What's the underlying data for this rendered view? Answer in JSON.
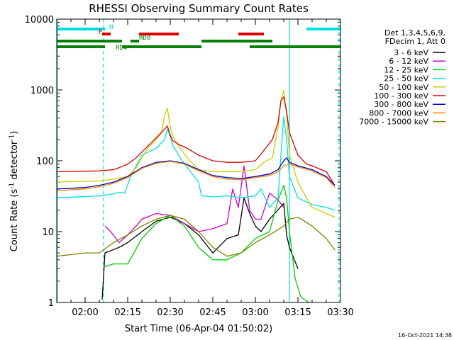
{
  "window": {
    "footer_timestamp": "16-Oct-2021 14:38"
  },
  "chart_data": {
    "type": "line",
    "title": "RHESSI Observing Summary Count Rates",
    "xlabel": "Start Time (06-Apr-04 01:50:02)",
    "ylabel_main": "Count Rate (s",
    "ylabel_sup1": "-1",
    "ylabel_mid": " detector",
    "ylabel_sup2": "-1",
    "ylabel_end": ")",
    "x_ticks": [
      "02:00",
      "02:15",
      "02:30",
      "02:45",
      "03:00",
      "03:15",
      "03:30"
    ],
    "x_tick_minutes": [
      0,
      15,
      30,
      45,
      60,
      75,
      90
    ],
    "xlim_minutes": [
      -10,
      90
    ],
    "y_scale": "log",
    "ylim": [
      1,
      10000
    ],
    "y_ticks": [
      "1",
      "10",
      "100",
      "1000",
      "10000"
    ],
    "legend": {
      "header": [
        "Det 1,3,4,5,6,9,",
        "FDecim 1, Att 0"
      ],
      "placement": "right"
    },
    "series": [
      {
        "name": "3 - 6 keV",
        "color": "#000000",
        "x": [
          0,
          5,
          6,
          7,
          12,
          15,
          20,
          25,
          30,
          35,
          40,
          45,
          50,
          54,
          56,
          58,
          60,
          62,
          65,
          70,
          71,
          72,
          75,
          80
        ],
        "y": [
          null,
          null,
          1.1,
          5,
          6,
          7,
          10,
          14,
          16,
          13,
          9,
          5,
          8,
          9,
          30,
          18,
          12,
          10,
          15,
          25,
          9,
          6,
          3,
          null
        ]
      },
      {
        "name": "6 - 12 keV",
        "color": "#cc00cc",
        "x": [
          7,
          9,
          12,
          15,
          18,
          20,
          25,
          30,
          35,
          40,
          45,
          50,
          52,
          54,
          56,
          58,
          60,
          62,
          65,
          68,
          70
        ],
        "y": [
          12,
          10,
          7,
          9,
          12,
          15,
          18,
          17,
          13,
          10,
          11,
          13,
          40,
          22,
          85,
          20,
          15,
          15,
          35,
          28,
          22
        ]
      },
      {
        "name": "12 - 25 keV",
        "color": "#00cc00",
        "x": [
          7,
          10,
          15,
          20,
          25,
          30,
          35,
          40,
          45,
          50,
          55,
          60,
          65,
          68,
          70,
          71,
          72,
          74,
          76,
          78,
          79
        ],
        "y": [
          3.2,
          3.5,
          3.5,
          8,
          13,
          17,
          12,
          6,
          4,
          4,
          5,
          8,
          10,
          28,
          45,
          30,
          10,
          2.2,
          1.2,
          1.05,
          1
        ]
      },
      {
        "name": "25 - 50 keV",
        "color": "#00e0e0",
        "x": [
          -10,
          5,
          10,
          12,
          14,
          16,
          20,
          25,
          28,
          29,
          30,
          31,
          35,
          40,
          41,
          45,
          50,
          55,
          60,
          62,
          65,
          68,
          69,
          70,
          71,
          72,
          75,
          80,
          85,
          88
        ],
        "y": [
          30,
          32,
          34,
          36,
          35,
          60,
          120,
          150,
          200,
          280,
          220,
          160,
          90,
          50,
          32,
          31,
          32,
          30,
          32,
          40,
          22,
          30,
          120,
          420,
          200,
          60,
          30,
          24,
          22,
          20
        ]
      },
      {
        "name": "50 - 100 keV",
        "color": "#cccc00",
        "x": [
          -10,
          5,
          10,
          15,
          18,
          22,
          25,
          27,
          28,
          29,
          30,
          31,
          33,
          36,
          40,
          45,
          50,
          55,
          60,
          63,
          66,
          68,
          69,
          70,
          71,
          72,
          75,
          78,
          80,
          85,
          88
        ],
        "y": [
          50,
          52,
          55,
          60,
          80,
          150,
          200,
          250,
          450,
          550,
          300,
          220,
          160,
          110,
          75,
          70,
          70,
          70,
          75,
          95,
          110,
          300,
          700,
          1000,
          450,
          120,
          50,
          30,
          22,
          18,
          16
        ]
      },
      {
        "name": "100 - 300 keV",
        "color": "#dd0000",
        "x": [
          -10,
          5,
          10,
          12,
          15,
          18,
          22,
          25,
          28,
          29,
          30,
          31,
          33,
          36,
          40,
          45,
          50,
          55,
          60,
          63,
          66,
          68,
          69,
          70,
          71,
          72,
          75,
          78,
          80,
          85,
          88
        ],
        "y": [
          70,
          72,
          75,
          80,
          90,
          110,
          160,
          210,
          280,
          310,
          230,
          190,
          170,
          150,
          120,
          100,
          95,
          95,
          100,
          140,
          200,
          350,
          700,
          800,
          500,
          250,
          120,
          90,
          85,
          70,
          45
        ]
      },
      {
        "name": "300 - 800 keV",
        "color": "#0000cc",
        "x": [
          -10,
          0,
          5,
          10,
          15,
          20,
          25,
          30,
          35,
          40,
          45,
          50,
          55,
          60,
          65,
          68,
          70,
          71,
          72,
          75,
          80,
          85,
          88
        ],
        "y": [
          40,
          42,
          45,
          50,
          60,
          80,
          95,
          100,
          92,
          75,
          62,
          58,
          56,
          60,
          65,
          75,
          100,
          110,
          95,
          85,
          75,
          60,
          45
        ]
      },
      {
        "name": "800 - 7000 keV",
        "color": "#ff8800",
        "x": [
          -10,
          0,
          5,
          10,
          15,
          20,
          25,
          30,
          35,
          40,
          45,
          50,
          55,
          60,
          65,
          68,
          70,
          72,
          75,
          80,
          85,
          88
        ],
        "y": [
          38,
          40,
          43,
          48,
          58,
          78,
          92,
          98,
          90,
          72,
          60,
          55,
          54,
          58,
          62,
          70,
          85,
          90,
          82,
          72,
          58,
          42
        ]
      },
      {
        "name": "7000 - 15000 keV",
        "color": "#808000",
        "x": [
          -10,
          0,
          5,
          10,
          15,
          20,
          25,
          30,
          35,
          40,
          45,
          50,
          55,
          60,
          65,
          70,
          72,
          75,
          80,
          85,
          88
        ],
        "y": [
          4.5,
          5,
          5,
          7,
          9,
          12,
          15,
          17,
          15,
          10,
          6,
          4.5,
          5,
          7,
          9,
          12,
          15,
          16,
          12,
          8,
          5.5
        ]
      }
    ],
    "flag_bars": [
      {
        "label": "N",
        "color": "#00e0e0",
        "segments": [
          [
            -10,
            7
          ],
          [
            78,
            90
          ]
        ]
      },
      {
        "label": "F",
        "color": "#dd0000",
        "segments": [
          [
            6,
            9
          ],
          [
            19,
            33
          ],
          [
            54,
            63
          ]
        ]
      },
      {
        "label": "RD0",
        "color": "#008000",
        "segments": [
          [
            -10,
            13
          ],
          [
            16,
            19
          ],
          [
            41,
            66
          ]
        ]
      },
      {
        "label": "RD4",
        "color": "#008000",
        "segments": [
          [
            -10,
            7
          ],
          [
            13,
            41
          ],
          [
            58,
            90
          ]
        ]
      }
    ],
    "vertical_markers": [
      {
        "x": -9.8,
        "color": "#00e0e0",
        "style": "solid"
      },
      {
        "x": 6.5,
        "color": "#00e0e0",
        "style": "dashed"
      },
      {
        "x": 72,
        "color": "#00e0e0",
        "style": "solid"
      },
      {
        "x": 89.5,
        "color": "#00e0e0",
        "style": "dashed"
      }
    ]
  }
}
